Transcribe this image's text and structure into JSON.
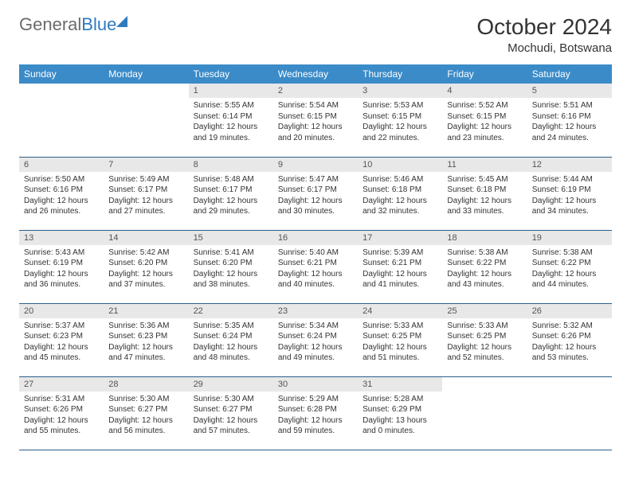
{
  "brand": {
    "word1": "General",
    "word2": "Blue"
  },
  "title": "October 2024",
  "location": "Mochudi, Botswana",
  "colors": {
    "header_bg": "#3b8bc8",
    "header_text": "#ffffff",
    "daynum_bg": "#e8e8e8",
    "row_border": "#2b5f8a",
    "logo_gray": "#6b6b6b",
    "logo_blue": "#2f7abf"
  },
  "weekdays": [
    "Sunday",
    "Monday",
    "Tuesday",
    "Wednesday",
    "Thursday",
    "Friday",
    "Saturday"
  ],
  "grid": [
    [
      null,
      null,
      {
        "n": "1",
        "sr": "5:55 AM",
        "ss": "6:14 PM",
        "dl": "12 hours and 19 minutes."
      },
      {
        "n": "2",
        "sr": "5:54 AM",
        "ss": "6:15 PM",
        "dl": "12 hours and 20 minutes."
      },
      {
        "n": "3",
        "sr": "5:53 AM",
        "ss": "6:15 PM",
        "dl": "12 hours and 22 minutes."
      },
      {
        "n": "4",
        "sr": "5:52 AM",
        "ss": "6:15 PM",
        "dl": "12 hours and 23 minutes."
      },
      {
        "n": "5",
        "sr": "5:51 AM",
        "ss": "6:16 PM",
        "dl": "12 hours and 24 minutes."
      }
    ],
    [
      {
        "n": "6",
        "sr": "5:50 AM",
        "ss": "6:16 PM",
        "dl": "12 hours and 26 minutes."
      },
      {
        "n": "7",
        "sr": "5:49 AM",
        "ss": "6:17 PM",
        "dl": "12 hours and 27 minutes."
      },
      {
        "n": "8",
        "sr": "5:48 AM",
        "ss": "6:17 PM",
        "dl": "12 hours and 29 minutes."
      },
      {
        "n": "9",
        "sr": "5:47 AM",
        "ss": "6:17 PM",
        "dl": "12 hours and 30 minutes."
      },
      {
        "n": "10",
        "sr": "5:46 AM",
        "ss": "6:18 PM",
        "dl": "12 hours and 32 minutes."
      },
      {
        "n": "11",
        "sr": "5:45 AM",
        "ss": "6:18 PM",
        "dl": "12 hours and 33 minutes."
      },
      {
        "n": "12",
        "sr": "5:44 AM",
        "ss": "6:19 PM",
        "dl": "12 hours and 34 minutes."
      }
    ],
    [
      {
        "n": "13",
        "sr": "5:43 AM",
        "ss": "6:19 PM",
        "dl": "12 hours and 36 minutes."
      },
      {
        "n": "14",
        "sr": "5:42 AM",
        "ss": "6:20 PM",
        "dl": "12 hours and 37 minutes."
      },
      {
        "n": "15",
        "sr": "5:41 AM",
        "ss": "6:20 PM",
        "dl": "12 hours and 38 minutes."
      },
      {
        "n": "16",
        "sr": "5:40 AM",
        "ss": "6:21 PM",
        "dl": "12 hours and 40 minutes."
      },
      {
        "n": "17",
        "sr": "5:39 AM",
        "ss": "6:21 PM",
        "dl": "12 hours and 41 minutes."
      },
      {
        "n": "18",
        "sr": "5:38 AM",
        "ss": "6:22 PM",
        "dl": "12 hours and 43 minutes."
      },
      {
        "n": "19",
        "sr": "5:38 AM",
        "ss": "6:22 PM",
        "dl": "12 hours and 44 minutes."
      }
    ],
    [
      {
        "n": "20",
        "sr": "5:37 AM",
        "ss": "6:23 PM",
        "dl": "12 hours and 45 minutes."
      },
      {
        "n": "21",
        "sr": "5:36 AM",
        "ss": "6:23 PM",
        "dl": "12 hours and 47 minutes."
      },
      {
        "n": "22",
        "sr": "5:35 AM",
        "ss": "6:24 PM",
        "dl": "12 hours and 48 minutes."
      },
      {
        "n": "23",
        "sr": "5:34 AM",
        "ss": "6:24 PM",
        "dl": "12 hours and 49 minutes."
      },
      {
        "n": "24",
        "sr": "5:33 AM",
        "ss": "6:25 PM",
        "dl": "12 hours and 51 minutes."
      },
      {
        "n": "25",
        "sr": "5:33 AM",
        "ss": "6:25 PM",
        "dl": "12 hours and 52 minutes."
      },
      {
        "n": "26",
        "sr": "5:32 AM",
        "ss": "6:26 PM",
        "dl": "12 hours and 53 minutes."
      }
    ],
    [
      {
        "n": "27",
        "sr": "5:31 AM",
        "ss": "6:26 PM",
        "dl": "12 hours and 55 minutes."
      },
      {
        "n": "28",
        "sr": "5:30 AM",
        "ss": "6:27 PM",
        "dl": "12 hours and 56 minutes."
      },
      {
        "n": "29",
        "sr": "5:30 AM",
        "ss": "6:27 PM",
        "dl": "12 hours and 57 minutes."
      },
      {
        "n": "30",
        "sr": "5:29 AM",
        "ss": "6:28 PM",
        "dl": "12 hours and 59 minutes."
      },
      {
        "n": "31",
        "sr": "5:28 AM",
        "ss": "6:29 PM",
        "dl": "13 hours and 0 minutes."
      },
      null,
      null
    ]
  ],
  "labels": {
    "sunrise": "Sunrise:",
    "sunset": "Sunset:",
    "daylight": "Daylight:"
  }
}
